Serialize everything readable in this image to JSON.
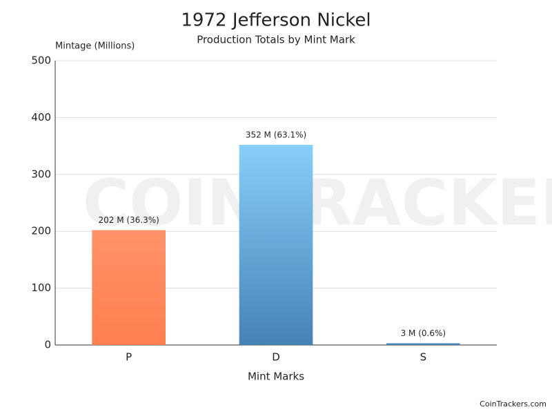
{
  "chart_data": {
    "type": "bar",
    "title": "1972 Jefferson Nickel",
    "subtitle": "Production Totals by Mint Mark",
    "y_label": "Mintage (Millions)",
    "x_label": "Mint Marks",
    "categories": [
      "P",
      "D",
      "S"
    ],
    "values": [
      202,
      352,
      3
    ],
    "value_labels": [
      "202 M (36.3%)",
      "352 M (63.1%)",
      "3 M (0.6%)"
    ],
    "colors": [
      "#ff7f50",
      "#4682b4",
      "#4682b4"
    ],
    "gradient_top_colors": [
      "#ffa07a",
      "#87cefa",
      "#87cefa"
    ],
    "ylim": [
      0,
      500
    ],
    "yticks": [
      0,
      100,
      200,
      300,
      400,
      500
    ],
    "grid": true,
    "watermark": "COINTRACKERS",
    "credit": "CoinTrackers.com"
  }
}
